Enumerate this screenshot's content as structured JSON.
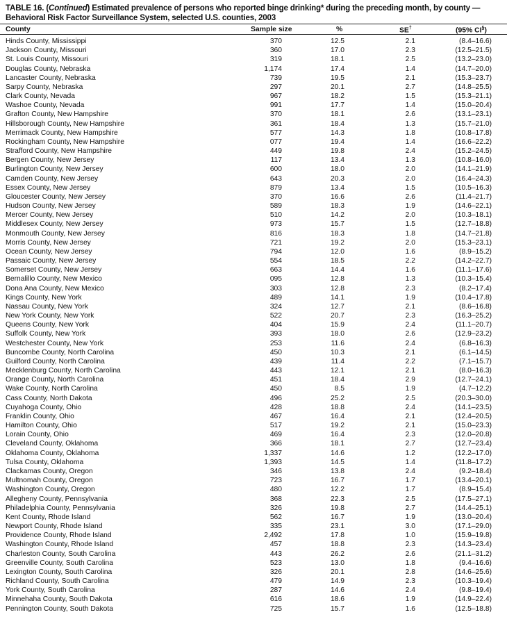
{
  "title": {
    "prefix": "TABLE 16. (",
    "continued": "Continued",
    "line1_rest": ") Estimated prevalence of persons who reported binge drinking* during the preceding month, by county —",
    "line2": "Behavioral Risk Factor Surveillance System, selected U.S. counties, 2003"
  },
  "headers": {
    "county": "County",
    "sample_size": "Sample size",
    "percent": "%",
    "se": "SE",
    "se_mark": "†",
    "ci": "(95% CI",
    "ci_mark": "§",
    "ci_close": ")"
  },
  "rows": [
    [
      "Hinds County, Mississippi",
      "370",
      "12.5",
      "2.1",
      "(8.4–16.6)"
    ],
    [
      "Jackson County, Missouri",
      "360",
      "17.0",
      "2.3",
      "(12.5–21.5)"
    ],
    [
      "St. Louis County, Missouri",
      "319",
      "18.1",
      "2.5",
      "(13.2–23.0)"
    ],
    [
      "Douglas County, Nebraska",
      "1,174",
      "17.4",
      "1.4",
      "(14.7–20.0)"
    ],
    [
      "Lancaster County, Nebraska",
      "739",
      "19.5",
      "2.1",
      "(15.3–23.7)"
    ],
    [
      "Sarpy County, Nebraska",
      "297",
      "20.1",
      "2.7",
      "(14.8–25.5)"
    ],
    [
      "Clark County, Nevada",
      "967",
      "18.2",
      "1.5",
      "(15.3–21.1)"
    ],
    [
      "Washoe County, Nevada",
      "991",
      "17.7",
      "1.4",
      "(15.0–20.4)"
    ],
    [
      "Grafton County, New Hampshire",
      "370",
      "18.1",
      "2.6",
      "(13.1–23.1)"
    ],
    [
      "Hillsborough County, New Hampshire",
      "361",
      "18.4",
      "1.3",
      "(15.7–21.0)"
    ],
    [
      "Merrimack County, New Hampshire",
      "577",
      "14.3",
      "1.8",
      "(10.8–17.8)"
    ],
    [
      "Rockingham County, New Hampshire",
      "077",
      "19.4",
      "1.4",
      "(16.6–22.2)"
    ],
    [
      "Strafford County, New Hampshire",
      "449",
      "19.8",
      "2.4",
      "(15.2–24.5)"
    ],
    [
      "Bergen County, New Jersey",
      "117",
      "13.4",
      "1.3",
      "(10.8–16.0)"
    ],
    [
      "Burlington County, New Jersey",
      "600",
      "18.0",
      "2.0",
      "(14.1–21.9)"
    ],
    [
      "Camden County, New Jersey",
      "643",
      "20.3",
      "2.0",
      "(16.4–24.3)"
    ],
    [
      "Essex County, New Jersey",
      "879",
      "13.4",
      "1.5",
      "(10.5–16.3)"
    ],
    [
      "Gloucester County, New Jersey",
      "370",
      "16.6",
      "2.6",
      "(11.4–21.7)"
    ],
    [
      "Hudson County, New Jersey",
      "589",
      "18.3",
      "1.9",
      "(14.6–22.1)"
    ],
    [
      "Mercer County, New Jersey",
      "510",
      "14.2",
      "2.0",
      "(10.3–18.1)"
    ],
    [
      "Middlesex County, New Jersey",
      "973",
      "15.7",
      "1.5",
      "(12.7–18.8)"
    ],
    [
      "Monmouth County, New Jersey",
      "816",
      "18.3",
      "1.8",
      "(14.7–21.8)"
    ],
    [
      "Morris County, New Jersey",
      "721",
      "19.2",
      "2.0",
      "(15.3–23.1)"
    ],
    [
      "Ocean County, New Jersey",
      "794",
      "12.0",
      "1.6",
      "(8.9–15.2)"
    ],
    [
      "Passaic County, New Jersey",
      "554",
      "18.5",
      "2.2",
      "(14.2–22.7)"
    ],
    [
      "Somerset County, New Jersey",
      "663",
      "14.4",
      "1.6",
      "(11.1–17.6)"
    ],
    [
      "Bernalillo County, New Mexico",
      "095",
      "12.8",
      "1.3",
      "(10.3–15.4)"
    ],
    [
      "Dona Ana County, New Mexico",
      "303",
      "12.8",
      "2.3",
      "(8.2–17.4)"
    ],
    [
      "Kings County, New York",
      "489",
      "14.1",
      "1.9",
      "(10.4–17.8)"
    ],
    [
      "Nassau County, New York",
      "324",
      "12.7",
      "2.1",
      "(8.6–16.8)"
    ],
    [
      "New York County, New York",
      "522",
      "20.7",
      "2.3",
      "(16.3–25.2)"
    ],
    [
      "Queens County, New York",
      "404",
      "15.9",
      "2.4",
      "(11.1–20.7)"
    ],
    [
      "Suffolk County, New York",
      "393",
      "18.0",
      "2.6",
      "(12.9–23.2)"
    ],
    [
      "Westchester County, New York",
      "253",
      "11.6",
      "2.4",
      "(6.8–16.3)"
    ],
    [
      "Buncombe County, North Carolina",
      "450",
      "10.3",
      "2.1",
      "(6.1–14.5)"
    ],
    [
      "Guilford County, North Carolina",
      "439",
      "11.4",
      "2.2",
      "(7.1–15.7)"
    ],
    [
      "Mecklenburg County, North Carolina",
      "443",
      "12.1",
      "2.1",
      "(8.0–16.3)"
    ],
    [
      "Orange County, North Carolina",
      "451",
      "18.4",
      "2.9",
      "(12.7–24.1)"
    ],
    [
      "Wake County, North Carolina",
      "450",
      "8.5",
      "1.9",
      "(4.7–12.2)"
    ],
    [
      "Cass County, North Dakota",
      "496",
      "25.2",
      "2.5",
      "(20.3–30.0)"
    ],
    [
      "Cuyahoga County, Ohio",
      "428",
      "18.8",
      "2.4",
      "(14.1–23.5)"
    ],
    [
      "Franklin County, Ohio",
      "467",
      "16.4",
      "2.1",
      "(12.4–20.5)"
    ],
    [
      "Hamilton County, Ohio",
      "517",
      "19.2",
      "2.1",
      "(15.0–23.3)"
    ],
    [
      "Lorain County, Ohio",
      "469",
      "16.4",
      "2.3",
      "(12.0–20.8)"
    ],
    [
      "Cleveland County, Oklahoma",
      "366",
      "18.1",
      "2.7",
      "(12.7–23.4)"
    ],
    [
      "Oklahoma County, Oklahoma",
      "1,337",
      "14.6",
      "1.2",
      "(12.2–17.0)"
    ],
    [
      "Tulsa County, Oklahoma",
      "1,393",
      "14.5",
      "1.4",
      "(11.8–17.2)"
    ],
    [
      "Clackamas County, Oregon",
      "346",
      "13.8",
      "2.4",
      "(9.2–18.4)"
    ],
    [
      "Multnomah County, Oregon",
      "723",
      "16.7",
      "1.7",
      "(13.4–20.1)"
    ],
    [
      "Washington County, Oregon",
      "480",
      "12.2",
      "1.7",
      "(8.9–15.4)"
    ],
    [
      "Allegheny County, Pennsylvania",
      "368",
      "22.3",
      "2.5",
      "(17.5–27.1)"
    ],
    [
      "Philadelphia County, Pennsylvania",
      "326",
      "19.8",
      "2.7",
      "(14.4–25.1)"
    ],
    [
      "Kent County, Rhode Island",
      "562",
      "16.7",
      "1.9",
      "(13.0–20.4)"
    ],
    [
      "Newport County, Rhode Island",
      "335",
      "23.1",
      "3.0",
      "(17.1–29.0)"
    ],
    [
      "Providence County, Rhode Island",
      "2,492",
      "17.8",
      "1.0",
      "(15.9–19.8)"
    ],
    [
      "Washington County, Rhode Island",
      "457",
      "18.8",
      "2.3",
      "(14.3–23.4)"
    ],
    [
      "Charleston County, South Carolina",
      "443",
      "26.2",
      "2.6",
      "(21.1–31.2)"
    ],
    [
      "Greenville County, South Carolina",
      "523",
      "13.0",
      "1.8",
      "(9.4–16.6)"
    ],
    [
      "Lexington County, South Carolina",
      "326",
      "20.1",
      "2.8",
      "(14.6–25.6)"
    ],
    [
      "Richland County, South Carolina",
      "479",
      "14.9",
      "2.3",
      "(10.3–19.4)"
    ],
    [
      "York County, South Carolina",
      "287",
      "14.6",
      "2.4",
      "(9.8–19.4)"
    ],
    [
      "Minnehaha County, South Dakota",
      "616",
      "18.6",
      "1.9",
      "(14.9–22.4)"
    ],
    [
      "Pennington County, South Dakota",
      "725",
      "15.7",
      "1.6",
      "(12.5–18.8)"
    ]
  ]
}
